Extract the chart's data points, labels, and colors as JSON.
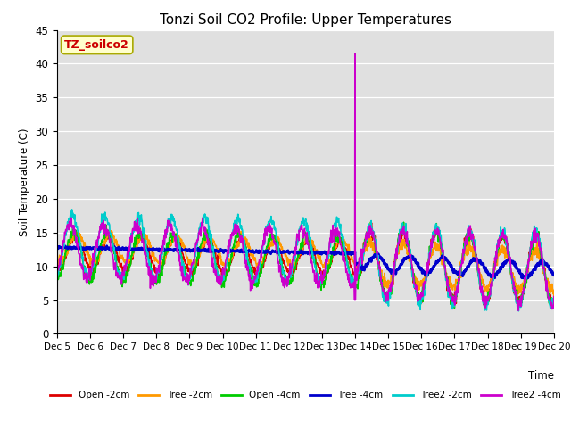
{
  "title": "Tonzi Soil CO2 Profile: Upper Temperatures",
  "ylabel": "Soil Temperature (C)",
  "xlabel": "Time",
  "ylim": [
    0,
    45
  ],
  "yticks": [
    0,
    5,
    10,
    15,
    20,
    25,
    30,
    35,
    40,
    45
  ],
  "xtick_labels": [
    "Dec 5",
    "Dec 6",
    "Dec 7",
    "Dec 8",
    "Dec 9",
    "Dec 10",
    "Dec 11",
    "Dec 12",
    "Dec 13",
    "Dec 14",
    "Dec 15",
    "Dec 16",
    "Dec 17",
    "Dec 18",
    "Dec 19",
    "Dec 20"
  ],
  "watermark_text": "TZ_soilco2",
  "watermark_color": "#cc0000",
  "watermark_bg": "#ffffcc",
  "watermark_border": "#aaaa00",
  "bg_color": "#e0e0e0",
  "series_order": [
    "Open -2cm",
    "Tree -2cm",
    "Open -4cm",
    "Tree -4cm",
    "Tree2 -2cm",
    "Tree2 -4cm"
  ],
  "series": {
    "Open -2cm": {
      "color": "#dd0000",
      "lw": 1.2
    },
    "Tree -2cm": {
      "color": "#ff9900",
      "lw": 1.2
    },
    "Open -4cm": {
      "color": "#00cc00",
      "lw": 1.2
    },
    "Tree -4cm": {
      "color": "#0000cc",
      "lw": 2.0
    },
    "Tree2 -2cm": {
      "color": "#00cccc",
      "lw": 1.2
    },
    "Tree2 -4cm": {
      "color": "#cc00cc",
      "lw": 1.2
    }
  }
}
